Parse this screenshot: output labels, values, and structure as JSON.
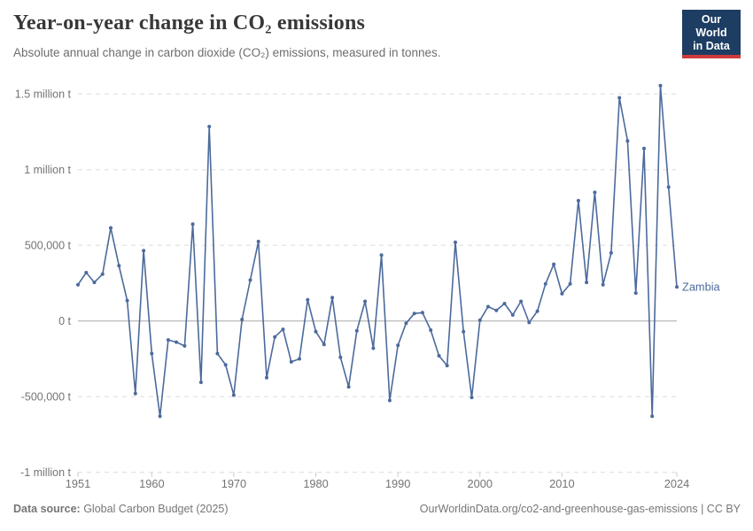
{
  "header": {
    "title": "Year-on-year change in CO₂ emissions",
    "subtitle": "Absolute annual change in carbon dioxide (CO₂) emissions, measured in tonnes.",
    "logo": {
      "line1": "Our World",
      "line2": "in Data"
    }
  },
  "chart_data": {
    "type": "line",
    "title": "Year-on-year change in CO₂ emissions",
    "entity_label": "Zambia",
    "unit": "t",
    "legend": "series-end-label",
    "grid": "horizontal-dashed",
    "xlim": [
      1951,
      2024
    ],
    "ylim": [
      -1000000,
      1500000
    ],
    "x_ticks": [
      1951,
      1960,
      1970,
      1980,
      1990,
      2000,
      2010,
      2024
    ],
    "y_ticks": [
      {
        "value": 1500000,
        "label": "1.5 million t"
      },
      {
        "value": 1000000,
        "label": "1 million t"
      },
      {
        "value": 500000,
        "label": "500,000 t"
      },
      {
        "value": 0,
        "label": "0 t"
      },
      {
        "value": -500000,
        "label": "-500,000 t"
      },
      {
        "value": -1000000,
        "label": "-1 million t"
      }
    ],
    "x": [
      1951,
      1952,
      1953,
      1954,
      1955,
      1956,
      1957,
      1958,
      1959,
      1960,
      1961,
      1962,
      1963,
      1964,
      1965,
      1966,
      1967,
      1968,
      1969,
      1970,
      1971,
      1972,
      1973,
      1974,
      1975,
      1976,
      1977,
      1978,
      1979,
      1980,
      1981,
      1982,
      1983,
      1984,
      1985,
      1986,
      1987,
      1988,
      1989,
      1990,
      1991,
      1992,
      1993,
      1994,
      1995,
      1996,
      1997,
      1998,
      1999,
      2000,
      2001,
      2002,
      2003,
      2004,
      2005,
      2006,
      2007,
      2008,
      2009,
      2010,
      2011,
      2012,
      2013,
      2014,
      2015,
      2016,
      2017,
      2018,
      2019,
      2020,
      2021,
      2022,
      2023,
      2024
    ],
    "series": [
      {
        "name": "Zambia",
        "color": "#4C6A9C",
        "values": [
          240000,
          320000,
          255000,
          310000,
          615000,
          365000,
          135000,
          -480000,
          465000,
          -215000,
          -630000,
          -125000,
          -140000,
          -165000,
          640000,
          -405000,
          1285000,
          -215000,
          -290000,
          -490000,
          10000,
          270000,
          525000,
          -375000,
          -105000,
          -55000,
          -270000,
          -250000,
          140000,
          -70000,
          -155000,
          155000,
          -240000,
          -435000,
          -65000,
          130000,
          -180000,
          435000,
          -525000,
          -160000,
          -15000,
          50000,
          55000,
          -60000,
          -230000,
          -295000,
          520000,
          -70000,
          -505000,
          5000,
          95000,
          70000,
          115000,
          40000,
          130000,
          -10000,
          65000,
          245000,
          375000,
          180000,
          245000,
          795000,
          255000,
          850000,
          240000,
          450000,
          1475000,
          1190000,
          185000,
          1140000,
          -630000,
          1555000,
          885000,
          225000
        ]
      }
    ],
    "colors": {
      "line": "#4C6A9C",
      "gridline": "#e5e5e5",
      "zero_line": "#a8a8a8",
      "tick_label": "#747474",
      "tick_mark": "#c9c9c9"
    }
  },
  "footer": {
    "datasource_label": "Data source:",
    "datasource_value": " Global Carbon Budget (2025)",
    "link": "OurWorldinData.org/co2-and-greenhouse-gas-emissions | CC BY"
  }
}
